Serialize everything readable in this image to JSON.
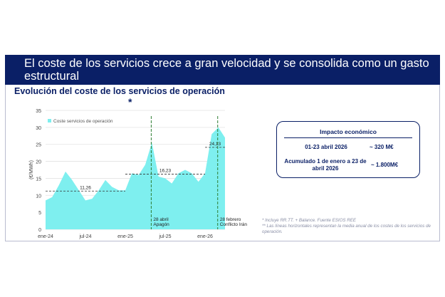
{
  "slide": {
    "title": "El coste de los servicios crece a gran velocidad y se consolida como un gasto estructural",
    "chart_title": "Evolución del coste de los servicios de operación",
    "chart_title_asterisk": "*"
  },
  "impact": {
    "title": "Impacto económico",
    "rows": [
      {
        "label": "01-23 abril 2026",
        "value": "~ 320 M€"
      },
      {
        "label": "Acumulado 1 de enero a 23 de abril 2026",
        "value": "~ 1.800M€"
      }
    ]
  },
  "notes": [
    "* Incluye RR.TT. + Balance. Fuente ESIOS REE",
    "** Las líneas horizontales representan la media anual de los costes de los servicios de operación."
  ],
  "colors": {
    "banner": "#0a1f66",
    "area": "#7eefef",
    "event_line": "#2e7d32",
    "text_dark": "#0a1f66"
  },
  "chart_data": {
    "type": "area",
    "ylabel": "(€/MWh)",
    "ylim": [
      0,
      35
    ],
    "yticks": [
      0,
      5,
      10,
      15,
      20,
      25,
      30,
      35
    ],
    "xlim": [
      "2024-01",
      "2026-04"
    ],
    "xticks": [
      "ene-24",
      "jul-24",
      "ene-25",
      "jul-25",
      "ene-26"
    ],
    "xtick_dates": [
      "2024-01",
      "2024-07",
      "2025-01",
      "2025-07",
      "2026-01"
    ],
    "legend_position": "top-left",
    "grid": "horizontal",
    "series": [
      {
        "name": "Coste servicios de operación",
        "x": [
          "2024-01",
          "2024-02",
          "2024-03",
          "2024-04",
          "2024-05",
          "2024-06",
          "2024-07",
          "2024-08",
          "2024-09",
          "2024-10",
          "2024-11",
          "2024-12",
          "2025-01",
          "2025-02",
          "2025-03",
          "2025-04",
          "2025-05",
          "2025-06",
          "2025-07",
          "2025-08",
          "2025-09",
          "2025-10",
          "2025-11",
          "2025-12",
          "2026-01",
          "2026-02",
          "2026-03",
          "2026-04"
        ],
        "y": [
          8.5,
          9.5,
          13.0,
          17.0,
          14.5,
          11.5,
          8.5,
          9.0,
          11.5,
          14.5,
          12.5,
          11.5,
          11.5,
          16.5,
          16.0,
          19.0,
          25.5,
          15.5,
          15.0,
          13.5,
          16.5,
          17.5,
          16.5,
          14.0,
          16.5,
          28.0,
          30.0,
          27.0
        ]
      }
    ],
    "annual_averages": [
      {
        "from": "2024-01",
        "to": "2025-01",
        "value": 11.26,
        "label": "11,26"
      },
      {
        "from": "2025-01",
        "to": "2026-01",
        "value": 16.23,
        "label": "16,23"
      },
      {
        "from": "2026-01",
        "to": "2026-04",
        "value": 24.13,
        "label": "24,13"
      }
    ],
    "events": [
      {
        "date": "2025-04-28",
        "label_line1": "28 abril",
        "label_line2": "Apagón"
      },
      {
        "date": "2026-02-28",
        "label_line1": "28  febrero",
        "label_line2": "Conflicto Irán"
      }
    ]
  }
}
